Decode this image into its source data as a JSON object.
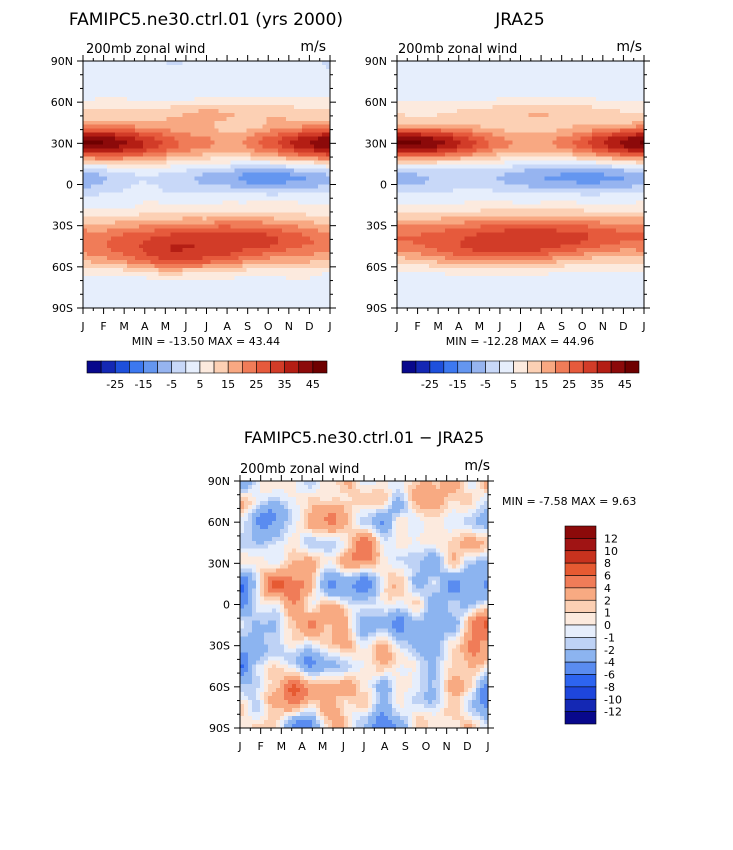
{
  "chart_data": [
    {
      "type": "heatmap",
      "title": "FAMIPC5.ne30.ctrl.01 (yrs 2000)",
      "subtitle": "200mb zonal wind",
      "units": "m/s",
      "x_ticks": [
        "J",
        "F",
        "M",
        "A",
        "M",
        "J",
        "J",
        "A",
        "S",
        "O",
        "N",
        "D",
        "J"
      ],
      "y_ticks": [
        "90N",
        "60N",
        "30N",
        "0",
        "30S",
        "60S",
        "90S"
      ],
      "y_values": [
        90,
        60,
        30,
        0,
        -30,
        -60,
        -90
      ],
      "stats": {
        "min_label": "MIN =",
        "min": "-13.50",
        "max_label": "MAX =",
        "max": "43.44"
      },
      "levels": [
        -30,
        -25,
        -20,
        -15,
        -10,
        -5,
        0,
        5,
        10,
        15,
        20,
        25,
        30,
        35,
        40,
        45
      ],
      "colorbar_labels": [
        "-25",
        "-15",
        "-5",
        "5",
        "15",
        "25",
        "35",
        "45"
      ],
      "colors": [
        "#08088c",
        "#1428b4",
        "#1e50dc",
        "#3c78f0",
        "#6496f0",
        "#96b4f0",
        "#c8d8f8",
        "#e6eefc",
        "#fceade",
        "#fcd0b4",
        "#f8a882",
        "#f07c58",
        "#e65a3c",
        "#d23c28",
        "#b41e14",
        "#8c0a0a",
        "#6e0000"
      ],
      "jets": [
        {
          "lat": 30,
          "width": 13,
          "amp": 30,
          "seasonal": 13,
          "phase": 0.3
        },
        {
          "lat": -40,
          "width": 17,
          "amp": 27,
          "seasonal": -5,
          "phase": 0.3
        },
        {
          "lat": -55,
          "width": 10,
          "amp": 8,
          "seasonal": 6,
          "phase": 2.3
        },
        {
          "lat": 52,
          "width": 10,
          "amp": 10,
          "seasonal": -3,
          "phase": 0.5
        }
      ],
      "trop": {
        "lat": 5,
        "width": 10,
        "amp": -10,
        "seasonal": 5,
        "phase": 1.6
      },
      "base": 2,
      "noise": 2.5,
      "seed": 11
    },
    {
      "type": "heatmap",
      "title": "JRA25",
      "subtitle": "200mb zonal wind",
      "units": "m/s",
      "x_ticks": [
        "J",
        "F",
        "M",
        "A",
        "M",
        "J",
        "J",
        "A",
        "S",
        "O",
        "N",
        "D",
        "J"
      ],
      "y_ticks": [
        "90N",
        "60N",
        "30N",
        "0",
        "30S",
        "60S",
        "90S"
      ],
      "y_values": [
        90,
        60,
        30,
        0,
        -30,
        -60,
        -90
      ],
      "stats": {
        "min_label": "MIN =",
        "min": "-12.28",
        "max_label": "MAX =",
        "max": "44.96"
      },
      "levels": [
        -30,
        -25,
        -20,
        -15,
        -10,
        -5,
        0,
        5,
        10,
        15,
        20,
        25,
        30,
        35,
        40,
        45
      ],
      "colorbar_labels": [
        "-25",
        "-15",
        "-5",
        "5",
        "15",
        "25",
        "35",
        "45"
      ],
      "colors": [
        "#08088c",
        "#1428b4",
        "#1e50dc",
        "#3c78f0",
        "#6496f0",
        "#96b4f0",
        "#c8d8f8",
        "#e6eefc",
        "#fceade",
        "#fcd0b4",
        "#f8a882",
        "#f07c58",
        "#e65a3c",
        "#d23c28",
        "#b41e14",
        "#8c0a0a",
        "#6e0000"
      ],
      "jets": [
        {
          "lat": 30,
          "width": 12,
          "amp": 30,
          "seasonal": 14,
          "phase": 0.3
        },
        {
          "lat": -38,
          "width": 17,
          "amp": 27,
          "seasonal": -4,
          "phase": 0.3
        },
        {
          "lat": -52,
          "width": 10,
          "amp": 6,
          "seasonal": 5,
          "phase": 2.3
        },
        {
          "lat": 52,
          "width": 10,
          "amp": 9,
          "seasonal": -3,
          "phase": 0.5
        }
      ],
      "trop": {
        "lat": 5,
        "width": 10,
        "amp": -10,
        "seasonal": 4,
        "phase": 1.6
      },
      "base": 2,
      "noise": 0.8,
      "seed": 23
    },
    {
      "type": "heatmap",
      "title": "FAMIPC5.ne30.ctrl.01 − JRA25",
      "subtitle": "200mb zonal wind",
      "units": "m/s",
      "x_ticks": [
        "J",
        "F",
        "M",
        "A",
        "M",
        "J",
        "J",
        "A",
        "S",
        "O",
        "N",
        "D",
        "J"
      ],
      "y_ticks": [
        "90N",
        "60N",
        "30N",
        "0",
        "30S",
        "60S",
        "90S"
      ],
      "y_values": [
        90,
        60,
        30,
        0,
        -30,
        -60,
        -90
      ],
      "stats": {
        "min_label": "MIN =",
        "min": "-7.58",
        "max_label": "MAX =",
        "max": "9.63"
      },
      "levels": [
        -12,
        -10,
        -8,
        -6,
        -4,
        -2,
        -1,
        0,
        1,
        2,
        4,
        6,
        8,
        10,
        12
      ],
      "colorbar_labels": [
        "12",
        "10",
        "8",
        "6",
        "4",
        "2",
        "1",
        "0",
        "-1",
        "-2",
        "-4",
        "-6",
        "-8",
        "-10",
        "-12"
      ],
      "colors": [
        "#08088c",
        "#1428b4",
        "#1e46dc",
        "#2d64f0",
        "#5a8cf0",
        "#8cb4f0",
        "#bed2f5",
        "#e6eefc",
        "#fceade",
        "#fcd0b4",
        "#f8aa82",
        "#f07c58",
        "#e65a32",
        "#c8321e",
        "#a01414",
        "#8c0a0a"
      ],
      "base": 0,
      "noise": 6.5,
      "seed": 71
    }
  ]
}
